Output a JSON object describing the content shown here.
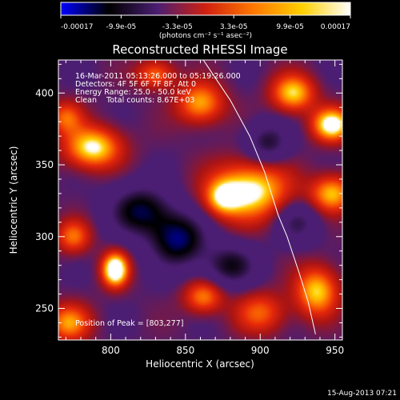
{
  "colorbar": {
    "tick_labels": [
      "-0.00017",
      "-9.9e-05",
      "-3.3e-05",
      "3.3e-05",
      "9.9e-05",
      "0.00017"
    ],
    "unit_label": "(photons cm⁻² s⁻¹ asec⁻²)",
    "colors": [
      "#0000ff",
      "#000000",
      "#4b1e73",
      "#d02010",
      "#ff7800",
      "#ffd000",
      "#ffffff"
    ]
  },
  "chart_data": {
    "type": "heatmap",
    "title": "Reconstructed RHESSI Image",
    "xlabel": "Heliocentric X (arcsec)",
    "ylabel": "Heliocentric Y (arcsec)",
    "xlim": [
      765,
      955
    ],
    "ylim": [
      228,
      423
    ],
    "xticks": [
      800,
      850,
      900,
      950
    ],
    "yticks": [
      250,
      300,
      350,
      400
    ],
    "color_range": [
      -0.00017,
      0.00017
    ],
    "info_lines": [
      "16-Mar-2011 05:13:26.000 to 05:19:26.000",
      "Detectors: 4F 5F 6F 7F 8F, Att 0",
      "Energy Range: 25.0 - 50.0 keV",
      "Clean    Total counts: 8.67E+03"
    ],
    "peak_label": "Position of Peak = [803,277]",
    "peak": [
      803,
      277
    ],
    "limb_curve": [
      [
        862,
        423
      ],
      [
        880,
        395
      ],
      [
        893,
        370
      ],
      [
        903,
        345
      ],
      [
        912,
        315
      ],
      [
        918,
        300
      ],
      [
        926,
        275
      ],
      [
        932,
        255
      ],
      [
        937,
        232
      ]
    ],
    "sources": [
      {
        "x": 803,
        "y": 277,
        "sx": 6,
        "sy": 8,
        "a": 1.25
      },
      {
        "x": 788,
        "y": 362,
        "sx": 13,
        "sy": 10,
        "a": 0.95
      },
      {
        "x": 770,
        "y": 383,
        "sx": 8,
        "sy": 8,
        "a": 0.55
      },
      {
        "x": 893,
        "y": 332,
        "sx": 18,
        "sy": 14,
        "a": 1.0
      },
      {
        "x": 875,
        "y": 327,
        "sx": 8,
        "sy": 8,
        "a": 0.6
      },
      {
        "x": 948,
        "y": 378,
        "sx": 9,
        "sy": 8,
        "a": 1.05
      },
      {
        "x": 922,
        "y": 400,
        "sx": 10,
        "sy": 9,
        "a": 0.85
      },
      {
        "x": 860,
        "y": 393,
        "sx": 11,
        "sy": 10,
        "a": 0.75
      },
      {
        "x": 830,
        "y": 413,
        "sx": 9,
        "sy": 7,
        "a": 0.6
      },
      {
        "x": 948,
        "y": 330,
        "sx": 10,
        "sy": 9,
        "a": 0.8
      },
      {
        "x": 938,
        "y": 262,
        "sx": 10,
        "sy": 12,
        "a": 0.85
      },
      {
        "x": 862,
        "y": 258,
        "sx": 9,
        "sy": 8,
        "a": 0.65
      },
      {
        "x": 900,
        "y": 247,
        "sx": 12,
        "sy": 10,
        "a": 0.55
      },
      {
        "x": 775,
        "y": 300,
        "sx": 8,
        "sy": 8,
        "a": 0.6
      },
      {
        "x": 772,
        "y": 240,
        "sx": 10,
        "sy": 9,
        "a": 0.7
      },
      {
        "x": 845,
        "y": 298,
        "sx": 13,
        "sy": 13,
        "a": -0.85
      },
      {
        "x": 820,
        "y": 318,
        "sx": 14,
        "sy": 12,
        "a": -0.75
      },
      {
        "x": 880,
        "y": 280,
        "sx": 12,
        "sy": 10,
        "a": -0.6
      },
      {
        "x": 905,
        "y": 365,
        "sx": 10,
        "sy": 10,
        "a": -0.55
      },
      {
        "x": 925,
        "y": 310,
        "sx": 10,
        "sy": 10,
        "a": -0.45
      }
    ]
  },
  "footer": {
    "date": "15-Aug-2013 07:21"
  }
}
